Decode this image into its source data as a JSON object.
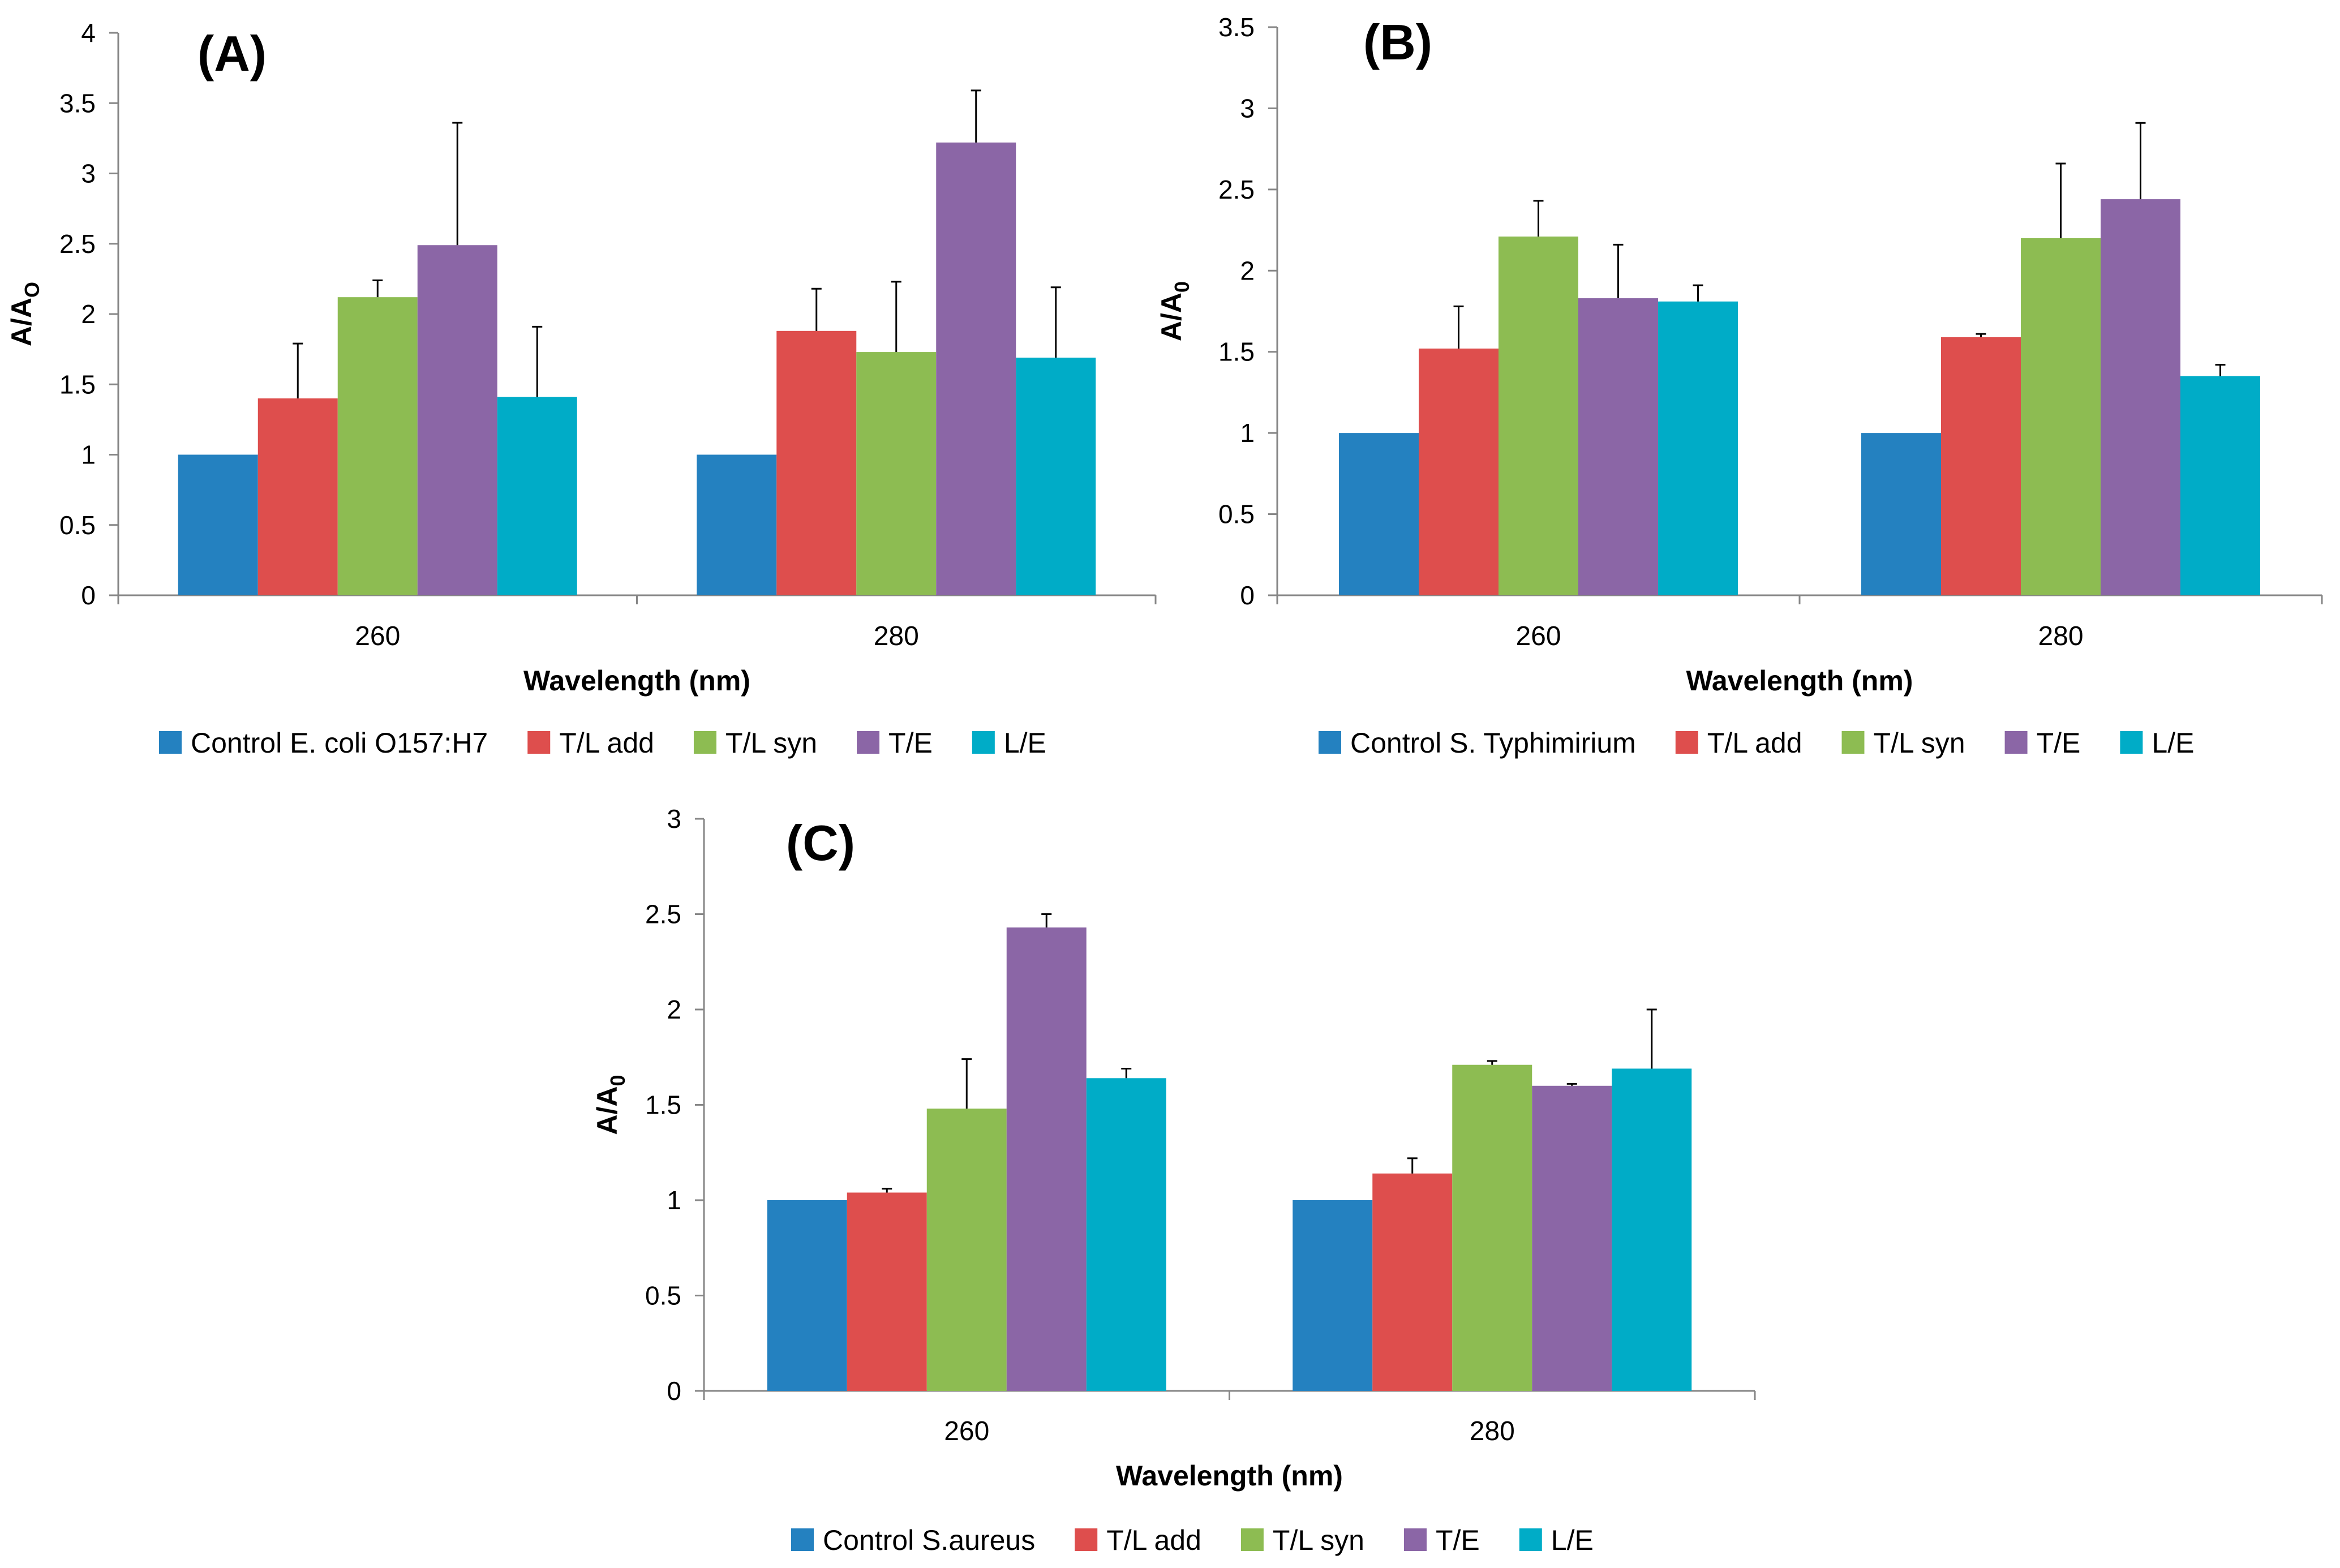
{
  "chart_data": [
    {
      "type": "bar",
      "panel_label": "(A)",
      "title": "",
      "categories": [
        "260",
        "280"
      ],
      "xlabel": "Wavelength (nm)",
      "ylabel": "A/A",
      "ylabel_sub": "O",
      "ylim": [
        0,
        4
      ],
      "ytick_step": 0.5,
      "yticks": [
        "0",
        "0.5",
        "1",
        "1.5",
        "2",
        "2.5",
        "3",
        "3.5",
        "4"
      ],
      "grid": false,
      "legend_position": "bottom",
      "series": [
        {
          "name": "Control E. coli O157:H7",
          "color": "#2481C0",
          "values": [
            1.0,
            1.0
          ],
          "errors": [
            0,
            0
          ]
        },
        {
          "name": "T/L add",
          "color": "#DE4E4D",
          "values": [
            1.4,
            1.88
          ],
          "errors": [
            0.39,
            0.3
          ]
        },
        {
          "name": "T/L syn",
          "color": "#8DBC52",
          "values": [
            2.12,
            1.73
          ],
          "errors": [
            0.12,
            0.5
          ]
        },
        {
          "name": "T/E",
          "color": "#8B66A6",
          "values": [
            2.49,
            3.22
          ],
          "errors": [
            0.87,
            0.37
          ]
        },
        {
          "name": "L/E",
          "color": "#00ACC7",
          "values": [
            1.41,
            1.69
          ],
          "errors": [
            0.5,
            0.5
          ]
        }
      ]
    },
    {
      "type": "bar",
      "panel_label": "(B)",
      "title": "",
      "categories": [
        "260",
        "280"
      ],
      "xlabel": "Wavelength (nm)",
      "ylabel": "A/A",
      "ylabel_sub": "0",
      "ylim": [
        0,
        3.5
      ],
      "ytick_step": 0.5,
      "yticks": [
        "0",
        "0.5",
        "1",
        "1.5",
        "2",
        "2.5",
        "3",
        "3.5"
      ],
      "grid": false,
      "legend_position": "bottom",
      "series": [
        {
          "name": "Control S. Typhimirium",
          "color": "#2481C0",
          "values": [
            1.0,
            1.0
          ],
          "errors": [
            0,
            0
          ]
        },
        {
          "name": "T/L add",
          "color": "#DE4E4D",
          "values": [
            1.52,
            1.59
          ],
          "errors": [
            0.26,
            0.02
          ]
        },
        {
          "name": "T/L syn",
          "color": "#8DBC52",
          "values": [
            2.21,
            2.2
          ],
          "errors": [
            0.22,
            0.46
          ]
        },
        {
          "name": "T/E",
          "color": "#8B66A6",
          "values": [
            1.83,
            2.44
          ],
          "errors": [
            0.33,
            0.47
          ]
        },
        {
          "name": "L/E",
          "color": "#00ACC7",
          "values": [
            1.81,
            1.35
          ],
          "errors": [
            0.1,
            0.07
          ]
        }
      ]
    },
    {
      "type": "bar",
      "panel_label": "(C)",
      "title": "",
      "categories": [
        "260",
        "280"
      ],
      "xlabel": "Wavelength (nm)",
      "ylabel": "A/A",
      "ylabel_sub": "0",
      "ylim": [
        0,
        3
      ],
      "ytick_step": 0.5,
      "yticks": [
        "0",
        "0.5",
        "1",
        "1.5",
        "2",
        "2.5",
        "3"
      ],
      "grid": false,
      "legend_position": "bottom",
      "series": [
        {
          "name": "Control S.aureus",
          "color": "#2481C0",
          "values": [
            1.0,
            1.0
          ],
          "errors": [
            0,
            0
          ]
        },
        {
          "name": "T/L add",
          "color": "#DE4E4D",
          "values": [
            1.04,
            1.14
          ],
          "errors": [
            0.02,
            0.08
          ]
        },
        {
          "name": "T/L syn",
          "color": "#8DBC52",
          "values": [
            1.48,
            1.71
          ],
          "errors": [
            0.26,
            0.02
          ]
        },
        {
          "name": "T/E",
          "color": "#8B66A6",
          "values": [
            2.43,
            1.6
          ],
          "errors": [
            0.07,
            0.01
          ]
        },
        {
          "name": "L/E",
          "color": "#00ACC7",
          "values": [
            1.64,
            1.69
          ],
          "errors": [
            0.05,
            0.31
          ]
        }
      ]
    }
  ]
}
